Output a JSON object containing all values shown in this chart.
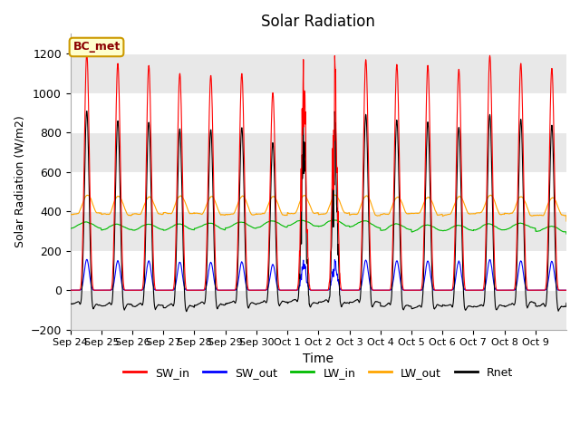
{
  "title": "Solar Radiation",
  "xlabel": "Time",
  "ylabel": "Solar Radiation (W/m2)",
  "ylim": [
    -200,
    1300
  ],
  "yticks": [
    -200,
    0,
    200,
    400,
    600,
    800,
    1000,
    1200
  ],
  "xtick_labels": [
    "Sep 24",
    "Sep 25",
    "Sep 26",
    "Sep 27",
    "Sep 28",
    "Sep 29",
    "Sep 30",
    "Oct 1",
    "Oct 2",
    "Oct 3",
    "Oct 4",
    "Oct 5",
    "Oct 6",
    "Oct 7",
    "Oct 8",
    "Oct 9"
  ],
  "colors": {
    "SW_in": "#ff0000",
    "SW_out": "#0000ff",
    "LW_in": "#00bb00",
    "LW_out": "#ffa500",
    "Rnet": "#000000"
  },
  "annotation_text": "BC_met",
  "annotation_bg": "#ffffcc",
  "annotation_border": "#cc9900",
  "background_color": "#ffffff",
  "n_days": 16,
  "dt_hours": 0.25
}
